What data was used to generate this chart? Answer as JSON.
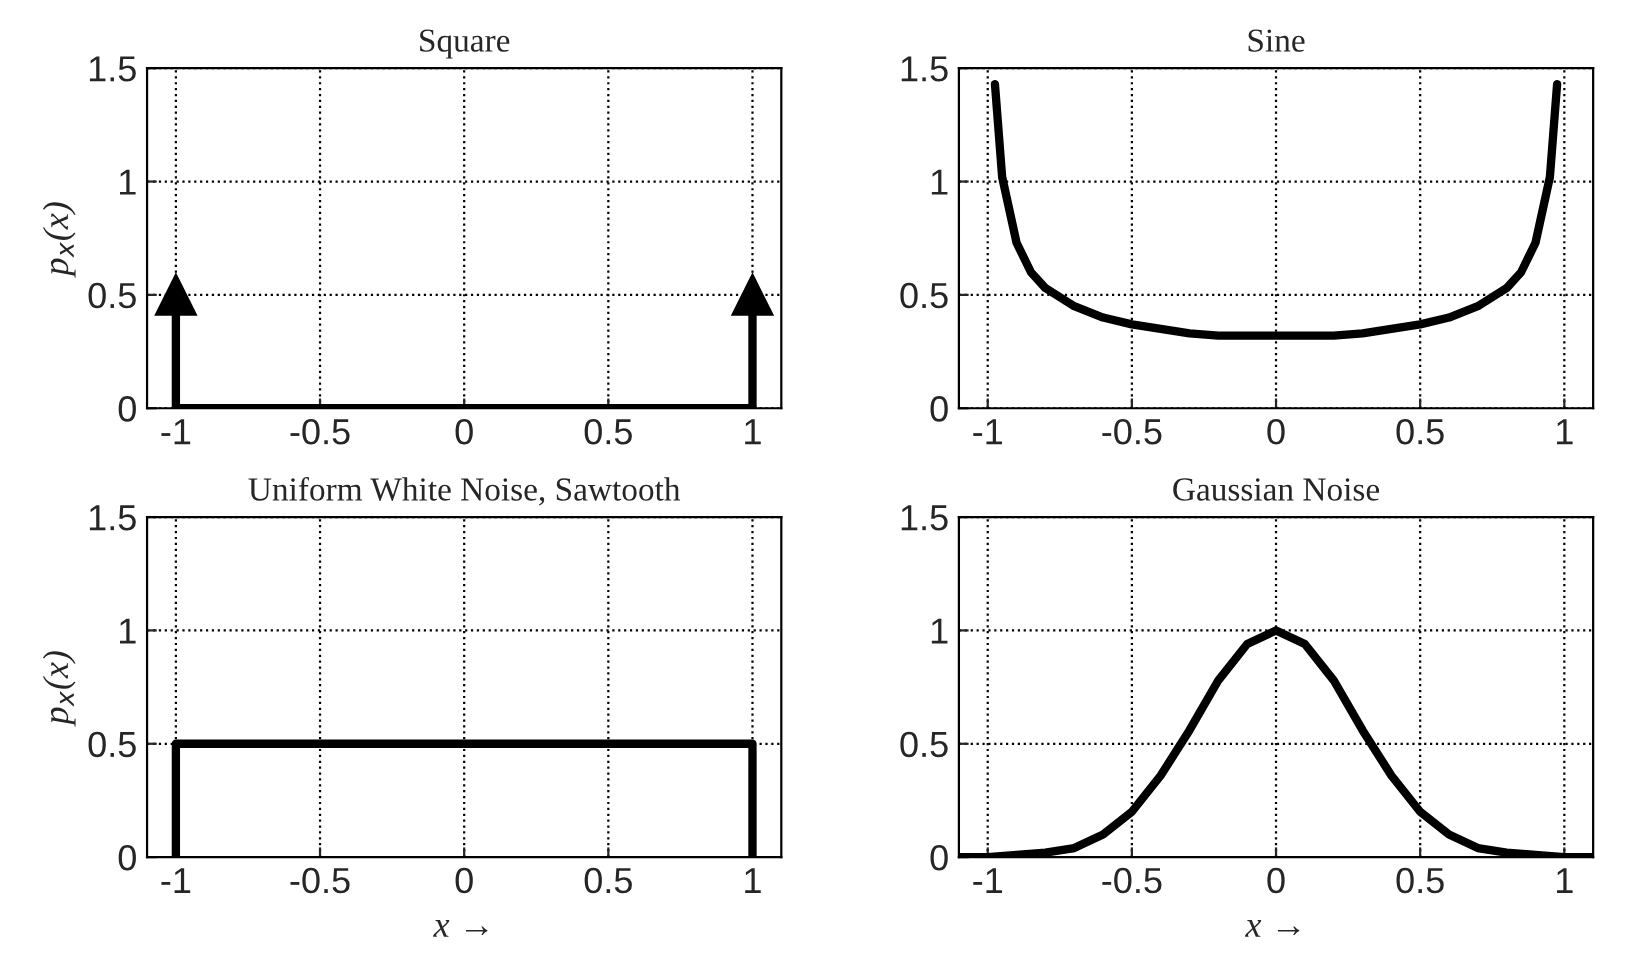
{
  "chart_data": [
    {
      "type": "line",
      "title": "Square",
      "ylabel": "p$_{x}$(x)",
      "xlim": [
        -1.1,
        1.1
      ],
      "ylim": [
        0,
        1.5
      ],
      "xticks": [
        -1,
        -0.5,
        0,
        0.5,
        1
      ],
      "yticks": [
        0,
        0.5,
        1,
        1.5
      ],
      "grid": true,
      "line_style": "solid",
      "series": [
        {
          "type": "line",
          "color": "#000000",
          "x": [
            -1,
            1
          ],
          "values": [
            0,
            0
          ]
        },
        {
          "type": "lollipop",
          "color": "#000000",
          "marker": "triangle",
          "x": [
            -1,
            1
          ],
          "values": [
            0.5,
            0.5
          ]
        }
      ]
    },
    {
      "type": "line",
      "title": "Sine",
      "xlim": [
        -1.1,
        1.1
      ],
      "ylim": [
        0,
        1.5
      ],
      "xticks": [
        -1,
        -0.5,
        0,
        0.5,
        1
      ],
      "yticks": [
        0,
        0.5,
        1,
        1.5
      ],
      "grid": true,
      "line_style": "solid",
      "series": [
        {
          "type": "line",
          "color": "#000000",
          "x": [
            -0.975,
            -0.95,
            -0.9,
            -0.85,
            -0.8,
            -0.7,
            -0.6,
            -0.5,
            -0.4,
            -0.3,
            -0.2,
            -0.1,
            0,
            0.1,
            0.2,
            0.3,
            0.4,
            0.5,
            0.6,
            0.7,
            0.8,
            0.85,
            0.9,
            0.95,
            0.975
          ],
          "values": [
            1.43,
            1.02,
            0.73,
            0.6,
            0.53,
            0.45,
            0.4,
            0.37,
            0.35,
            0.33,
            0.32,
            0.32,
            0.32,
            0.32,
            0.32,
            0.33,
            0.35,
            0.37,
            0.4,
            0.45,
            0.53,
            0.6,
            0.73,
            1.02,
            1.43
          ]
        }
      ]
    },
    {
      "type": "line",
      "title": "Uniform White Noise, Sawtooth",
      "ylabel": "p$_{x}$(x)",
      "xlabel": "x →",
      "xlim": [
        -1.1,
        1.1
      ],
      "ylim": [
        0,
        1.5
      ],
      "xticks": [
        -1,
        -0.5,
        0,
        0.5,
        1
      ],
      "yticks": [
        0,
        0.5,
        1,
        1.5
      ],
      "grid": true,
      "line_style": "solid",
      "series": [
        {
          "type": "line",
          "color": "#000000",
          "x": [
            -1,
            -1,
            1,
            1
          ],
          "values": [
            0,
            0.5,
            0.5,
            0
          ]
        }
      ]
    },
    {
      "type": "line",
      "title": "Gaussian Noise",
      "xlabel": "x →",
      "xlim": [
        -1.1,
        1.1
      ],
      "ylim": [
        0,
        1.5
      ],
      "xticks": [
        -1,
        -0.5,
        0,
        0.5,
        1
      ],
      "yticks": [
        0,
        0.5,
        1,
        1.5
      ],
      "grid": true,
      "line_style": "solid",
      "series": [
        {
          "type": "line",
          "color": "#000000",
          "x": [
            -1.1,
            -1,
            -0.9,
            -0.8,
            -0.7,
            -0.6,
            -0.5,
            -0.4,
            -0.3,
            -0.2,
            -0.1,
            0,
            0.1,
            0.2,
            0.3,
            0.4,
            0.5,
            0.6,
            0.7,
            0.8,
            0.9,
            1,
            1.1
          ],
          "values": [
            0,
            0,
            0.01,
            0.02,
            0.04,
            0.1,
            0.2,
            0.36,
            0.56,
            0.78,
            0.94,
            1,
            0.94,
            0.78,
            0.56,
            0.36,
            0.2,
            0.1,
            0.04,
            0.02,
            0.01,
            0,
            0
          ]
        }
      ]
    }
  ]
}
